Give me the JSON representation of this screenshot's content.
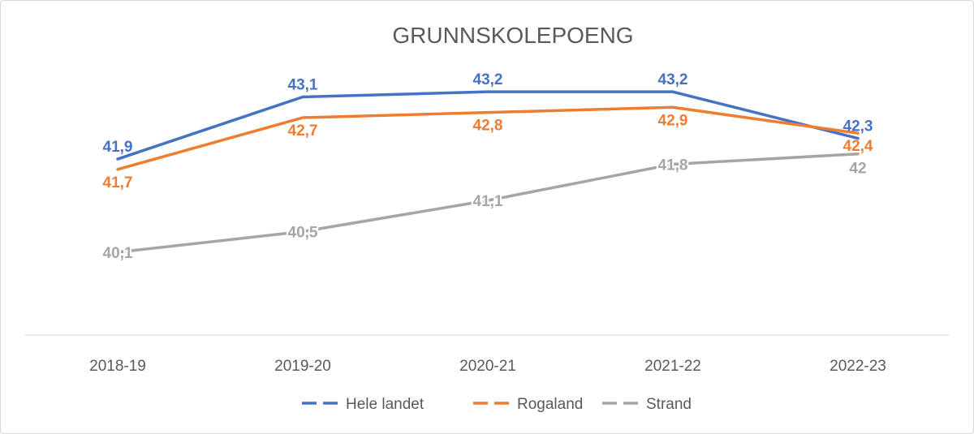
{
  "chart_data": {
    "type": "line",
    "title": "GRUNNSKOLEPOENG",
    "categories": [
      "2018-19",
      "2019-20",
      "2020-21",
      "2021-22",
      "2022-23"
    ],
    "series": [
      {
        "name": "Hele landet",
        "color": "#4472C4",
        "values": [
          41.9,
          43.1,
          43.2,
          43.2,
          42.3
        ],
        "labels": [
          "41,9",
          "43,1",
          "43,2",
          "43,2",
          "42,3"
        ]
      },
      {
        "name": "Rogaland",
        "color": "#ED7D31",
        "values": [
          41.7,
          42.7,
          42.8,
          42.9,
          42.4
        ],
        "labels": [
          "41,7",
          "42,7",
          "42,8",
          "42,9",
          "42,4"
        ]
      },
      {
        "name": "Strand",
        "color": "#A5A5A5",
        "values": [
          40.1,
          40.5,
          41.1,
          41.8,
          42.0
        ],
        "labels": [
          "40,1",
          "40,5",
          "41,1",
          "41,8",
          "42"
        ]
      }
    ],
    "ylim": [
      38.5,
      43.5
    ],
    "grid": false,
    "legend": "bottom"
  }
}
